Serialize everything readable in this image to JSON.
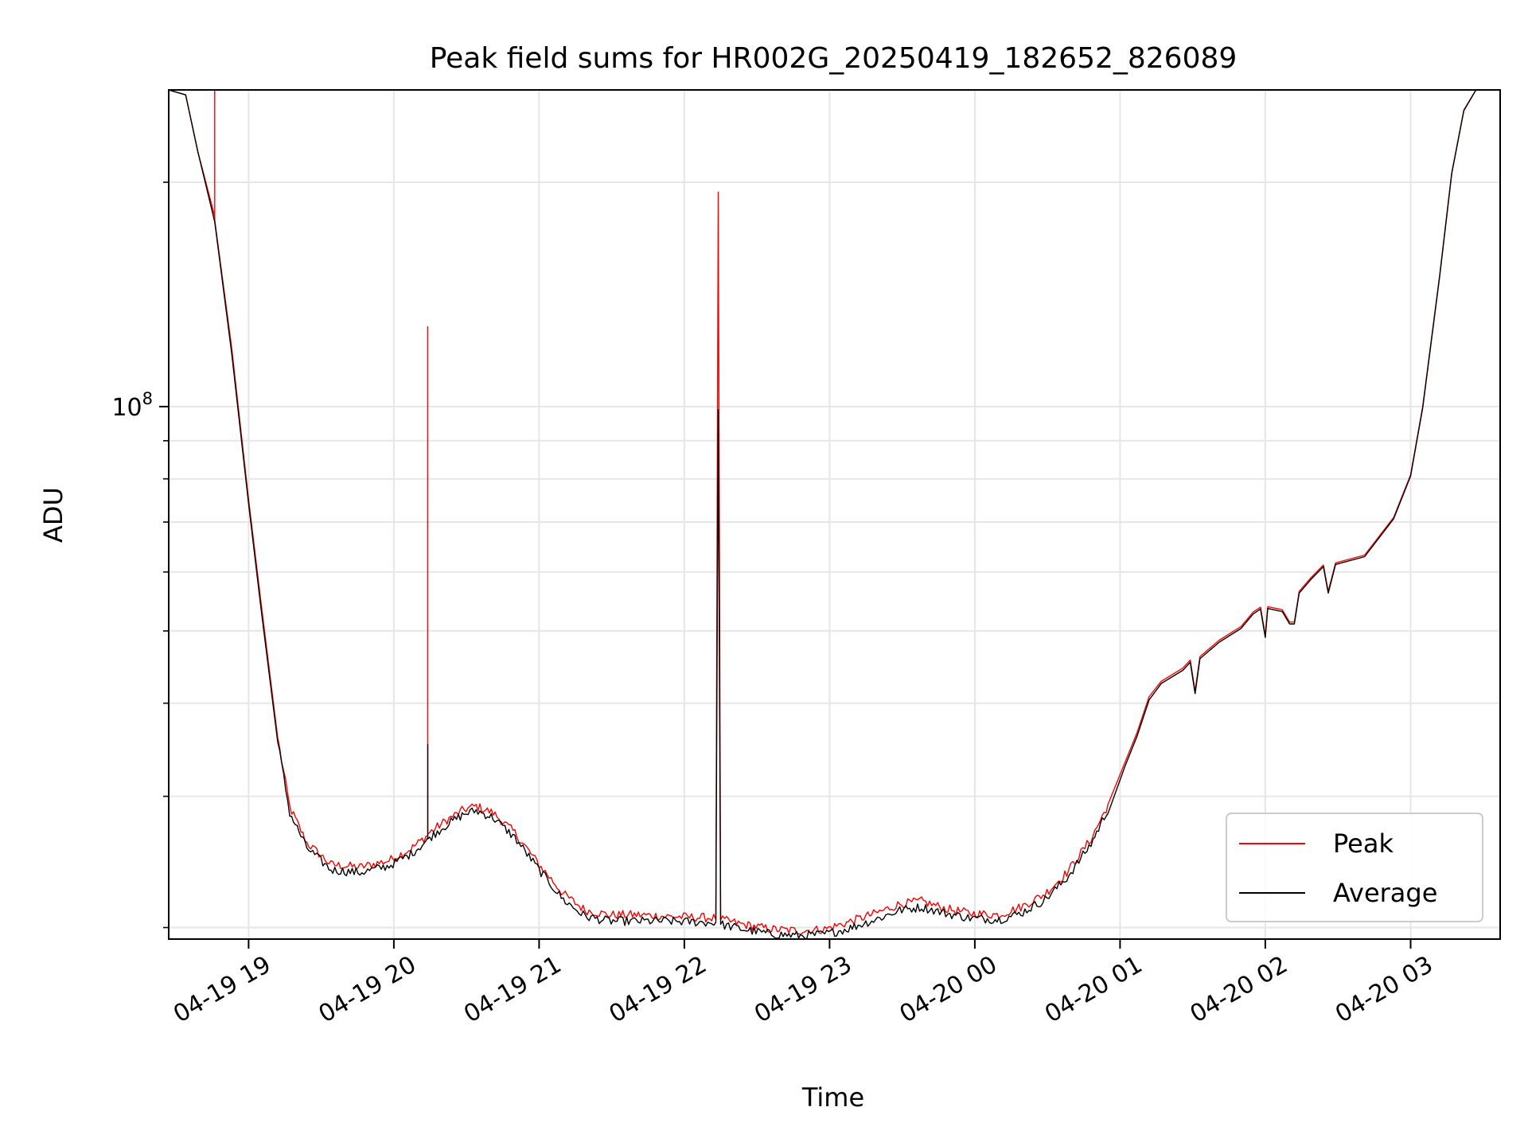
{
  "chart_data": {
    "type": "line",
    "title": "Peak field sums for HR002G_20250419_182652_826089",
    "xlabel": "Time",
    "ylabel": "ADU",
    "yscale": "log",
    "grid": true,
    "legend": {
      "placement": "lower-right",
      "entries": [
        "Peak",
        "Average"
      ]
    },
    "xlim": [
      "2025-04-19 18:27",
      "2025-04-20 03:37"
    ],
    "ylim": [
      19300000,
      266000000
    ],
    "x_ticks": [
      {
        "t": "2025-04-19 19:00",
        "label": "04-19 19"
      },
      {
        "t": "2025-04-19 20:00",
        "label": "04-19 20"
      },
      {
        "t": "2025-04-19 21:00",
        "label": "04-19 21"
      },
      {
        "t": "2025-04-19 22:00",
        "label": "04-19 22"
      },
      {
        "t": "2025-04-19 23:00",
        "label": "04-19 23"
      },
      {
        "t": "2025-04-20 00:00",
        "label": "04-20 00"
      },
      {
        "t": "2025-04-20 01:00",
        "label": "04-20 01"
      },
      {
        "t": "2025-04-20 02:00",
        "label": "04-20 02"
      },
      {
        "t": "2025-04-20 03:00",
        "label": "04-20 03"
      }
    ],
    "y_major_ticks": [
      {
        "value": 100000000,
        "base": "10",
        "exp": "8"
      }
    ],
    "y_minor_ticks": [
      20000000,
      30000000,
      40000000,
      50000000,
      60000000,
      70000000,
      80000000,
      90000000,
      200000000
    ],
    "series": [
      {
        "name": "Peak",
        "color": "#ff0000",
        "points": [
          [
            "2025-04-19 18:27",
            266000000
          ],
          [
            "2025-04-19 18:34",
            262000000
          ],
          [
            "2025-04-19 18:39",
            220000000
          ],
          [
            "2025-04-19 18:46",
            180000000
          ],
          [
            "2025-04-19 18:46",
            265000000
          ],
          [
            "2025-04-19 18:46",
            178000000
          ],
          [
            "2025-04-19 18:53",
            120000000
          ],
          [
            "2025-04-19 19:00",
            75000000
          ],
          [
            "2025-04-19 19:05",
            55000000
          ],
          [
            "2025-04-19 19:12",
            36000000
          ],
          [
            "2025-04-19 19:17",
            29000000
          ],
          [
            "2025-04-19 19:24",
            26000000
          ],
          [
            "2025-04-19 19:34",
            24300000
          ],
          [
            "2025-04-19 19:46",
            24100000
          ],
          [
            "2025-04-19 19:58",
            24600000
          ],
          [
            "2025-04-19 20:07",
            25500000
          ],
          [
            "2025-04-19 20:14",
            26600000
          ],
          [
            "2025-04-19 20:14",
            128000000
          ],
          [
            "2025-04-19 20:14",
            26700000
          ],
          [
            "2025-04-19 20:22",
            27900000
          ],
          [
            "2025-04-19 20:29",
            28800000
          ],
          [
            "2025-04-19 20:34",
            29100000
          ],
          [
            "2025-04-19 20:41",
            28500000
          ],
          [
            "2025-04-19 20:50",
            26800000
          ],
          [
            "2025-04-19 21:00",
            24300000
          ],
          [
            "2025-04-19 21:10",
            22200000
          ],
          [
            "2025-04-19 21:19",
            21100000
          ],
          [
            "2025-04-19 21:29",
            20800000
          ],
          [
            "2025-04-19 21:41",
            20800000
          ],
          [
            "2025-04-19 21:53",
            20700000
          ],
          [
            "2025-04-19 22:13",
            20600000
          ],
          [
            "2025-04-19 22:14",
            194000000
          ],
          [
            "2025-04-19 22:15",
            20500000
          ],
          [
            "2025-04-19 22:24",
            20200000
          ],
          [
            "2025-04-19 22:36",
            19900000
          ],
          [
            "2025-04-19 22:48",
            19800000
          ],
          [
            "2025-04-19 22:58",
            19900000
          ],
          [
            "2025-04-19 23:07",
            20300000
          ],
          [
            "2025-04-19 23:19",
            20900000
          ],
          [
            "2025-04-19 23:29",
            21500000
          ],
          [
            "2025-04-19 23:38",
            21700000
          ],
          [
            "2025-04-19 23:48",
            21200000
          ],
          [
            "2025-04-19 23:58",
            20900000
          ],
          [
            "2025-04-20 00:10",
            20800000
          ],
          [
            "2025-04-20 00:19",
            21300000
          ],
          [
            "2025-04-20 00:29",
            22200000
          ],
          [
            "2025-04-20 00:38",
            23700000
          ],
          [
            "2025-04-20 00:48",
            26300000
          ],
          [
            "2025-04-20 00:55",
            29200000
          ],
          [
            "2025-04-20 01:02",
            33300000
          ],
          [
            "2025-04-20 01:07",
            36500000
          ],
          [
            "2025-04-20 01:12",
            40800000
          ],
          [
            "2025-04-20 01:17",
            42800000
          ],
          [
            "2025-04-20 01:26",
            44600000
          ],
          [
            "2025-04-20 01:29",
            45700000
          ],
          [
            "2025-04-20 01:31",
            41500000
          ],
          [
            "2025-04-20 01:33",
            46200000
          ],
          [
            "2025-04-20 01:41",
            48600000
          ],
          [
            "2025-04-20 01:50",
            50700000
          ],
          [
            "2025-04-20 01:55",
            53000000
          ],
          [
            "2025-04-20 01:58",
            53800000
          ],
          [
            "2025-04-20 02:00",
            49300000
          ],
          [
            "2025-04-20 02:01",
            53900000
          ],
          [
            "2025-04-20 02:07",
            53400000
          ],
          [
            "2025-04-20 02:10",
            51400000
          ],
          [
            "2025-04-20 02:12",
            51400000
          ],
          [
            "2025-04-20 02:14",
            56500000
          ],
          [
            "2025-04-20 02:19",
            59000000
          ],
          [
            "2025-04-20 02:24",
            61300000
          ],
          [
            "2025-04-20 02:26",
            56500000
          ],
          [
            "2025-04-20 02:29",
            61700000
          ],
          [
            "2025-04-20 02:41",
            63200000
          ],
          [
            "2025-04-20 02:53",
            71000000
          ],
          [
            "2025-04-20 03:00",
            81000000
          ],
          [
            "2025-04-20 03:05",
            100000000
          ],
          [
            "2025-04-20 03:12",
            150000000
          ],
          [
            "2025-04-20 03:17",
            206000000
          ],
          [
            "2025-04-20 03:22",
            250000000
          ],
          [
            "2025-04-20 03:27",
            266000000
          ],
          [
            "2025-04-20 03:37",
            266000000
          ]
        ]
      },
      {
        "name": "Average",
        "color": "#000000",
        "points": [
          [
            "2025-04-19 18:27",
            266000000
          ],
          [
            "2025-04-19 18:34",
            262000000
          ],
          [
            "2025-04-19 18:39",
            220000000
          ],
          [
            "2025-04-19 18:46",
            177000000
          ],
          [
            "2025-04-19 18:53",
            118000000
          ],
          [
            "2025-04-19 19:00",
            74000000
          ],
          [
            "2025-04-19 19:05",
            54000000
          ],
          [
            "2025-04-19 19:12",
            35500000
          ],
          [
            "2025-04-19 19:17",
            28500000
          ],
          [
            "2025-04-19 19:24",
            25600000
          ],
          [
            "2025-04-19 19:34",
            23900000
          ],
          [
            "2025-04-19 19:46",
            23700000
          ],
          [
            "2025-04-19 19:58",
            24200000
          ],
          [
            "2025-04-19 20:07",
            25100000
          ],
          [
            "2025-04-19 20:14",
            26200000
          ],
          [
            "2025-04-19 20:14",
            35200000
          ],
          [
            "2025-04-19 20:14",
            26300000
          ],
          [
            "2025-04-19 20:22",
            27500000
          ],
          [
            "2025-04-19 20:29",
            28400000
          ],
          [
            "2025-04-19 20:34",
            28700000
          ],
          [
            "2025-04-19 20:41",
            28100000
          ],
          [
            "2025-04-19 20:50",
            26400000
          ],
          [
            "2025-04-19 21:00",
            23900000
          ],
          [
            "2025-04-19 21:10",
            21800000
          ],
          [
            "2025-04-19 21:19",
            20700000
          ],
          [
            "2025-04-19 21:29",
            20400000
          ],
          [
            "2025-04-19 21:41",
            20400000
          ],
          [
            "2025-04-19 21:53",
            20400000
          ],
          [
            "2025-04-19 22:13",
            20300000
          ],
          [
            "2025-04-19 22:14",
            99000000
          ],
          [
            "2025-04-19 22:15",
            20200000
          ],
          [
            "2025-04-19 22:24",
            19900000
          ],
          [
            "2025-04-19 22:36",
            19600000
          ],
          [
            "2025-04-19 22:48",
            19500000
          ],
          [
            "2025-04-19 22:58",
            19600000
          ],
          [
            "2025-04-19 23:07",
            19900000
          ],
          [
            "2025-04-19 23:19",
            20500000
          ],
          [
            "2025-04-19 23:29",
            21100000
          ],
          [
            "2025-04-19 23:38",
            21300000
          ],
          [
            "2025-04-19 23:48",
            20900000
          ],
          [
            "2025-04-19 23:58",
            20600000
          ],
          [
            "2025-04-20 00:10",
            20500000
          ],
          [
            "2025-04-20 00:19",
            20900000
          ],
          [
            "2025-04-20 00:29",
            21800000
          ],
          [
            "2025-04-20 00:38",
            23300000
          ],
          [
            "2025-04-20 00:48",
            25900000
          ],
          [
            "2025-04-20 00:55",
            28800000
          ],
          [
            "2025-04-20 01:02",
            32900000
          ],
          [
            "2025-04-20 01:07",
            36100000
          ],
          [
            "2025-04-20 01:12",
            40400000
          ],
          [
            "2025-04-20 01:17",
            42500000
          ],
          [
            "2025-04-20 01:26",
            44300000
          ],
          [
            "2025-04-20 01:29",
            45400000
          ],
          [
            "2025-04-20 01:31",
            41200000
          ],
          [
            "2025-04-20 01:33",
            45900000
          ],
          [
            "2025-04-20 01:41",
            48300000
          ],
          [
            "2025-04-20 01:50",
            50400000
          ],
          [
            "2025-04-20 01:55",
            52700000
          ],
          [
            "2025-04-20 01:58",
            53500000
          ],
          [
            "2025-04-20 02:00",
            49000000
          ],
          [
            "2025-04-20 02:01",
            53600000
          ],
          [
            "2025-04-20 02:07",
            53100000
          ],
          [
            "2025-04-20 02:10",
            51100000
          ],
          [
            "2025-04-20 02:12",
            51100000
          ],
          [
            "2025-04-20 02:14",
            56200000
          ],
          [
            "2025-04-20 02:19",
            58700000
          ],
          [
            "2025-04-20 02:24",
            61000000
          ],
          [
            "2025-04-20 02:26",
            56200000
          ],
          [
            "2025-04-20 02:29",
            61400000
          ],
          [
            "2025-04-20 02:41",
            62900000
          ],
          [
            "2025-04-20 02:53",
            70700000
          ],
          [
            "2025-04-20 03:00",
            80700000
          ],
          [
            "2025-04-20 03:05",
            99600000
          ],
          [
            "2025-04-20 03:12",
            149500000
          ],
          [
            "2025-04-20 03:17",
            205500000
          ],
          [
            "2025-04-20 03:22",
            249500000
          ],
          [
            "2025-04-20 03:27",
            266000000
          ],
          [
            "2025-04-20 03:37",
            266000000
          ]
        ]
      }
    ]
  }
}
